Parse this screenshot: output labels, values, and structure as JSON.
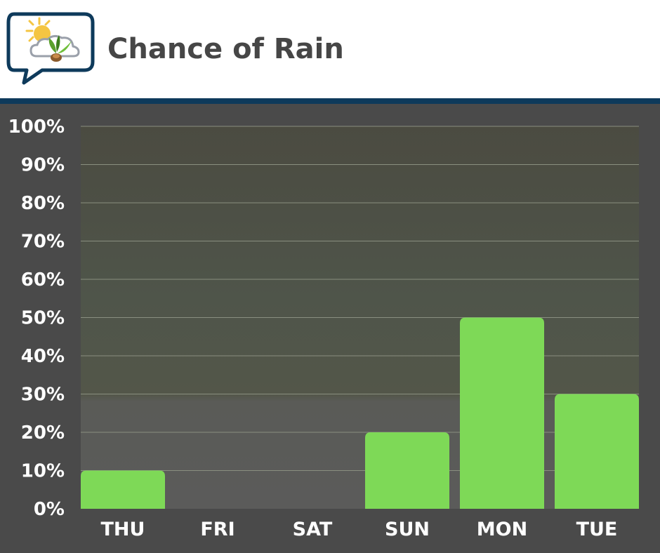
{
  "header": {
    "title": "Chance of Rain"
  },
  "colors": {
    "bar": "#7ed957",
    "header_rule": "#0e3a5b",
    "background": "#4a4a4a",
    "gridline": "#8a8f80"
  },
  "chart_data": {
    "type": "bar",
    "categories": [
      "THU",
      "FRI",
      "SAT",
      "SUN",
      "MON",
      "TUE"
    ],
    "values": [
      10,
      0,
      0,
      20,
      50,
      30
    ],
    "ylim": [
      0,
      100
    ],
    "yticks": [
      0,
      10,
      20,
      30,
      40,
      50,
      60,
      70,
      80,
      90,
      100
    ],
    "ytick_labels": [
      "0%",
      "10%",
      "20%",
      "30%",
      "40%",
      "50%",
      "60%",
      "70%",
      "80%",
      "90%",
      "100%"
    ],
    "grid": true,
    "legend": "none"
  }
}
